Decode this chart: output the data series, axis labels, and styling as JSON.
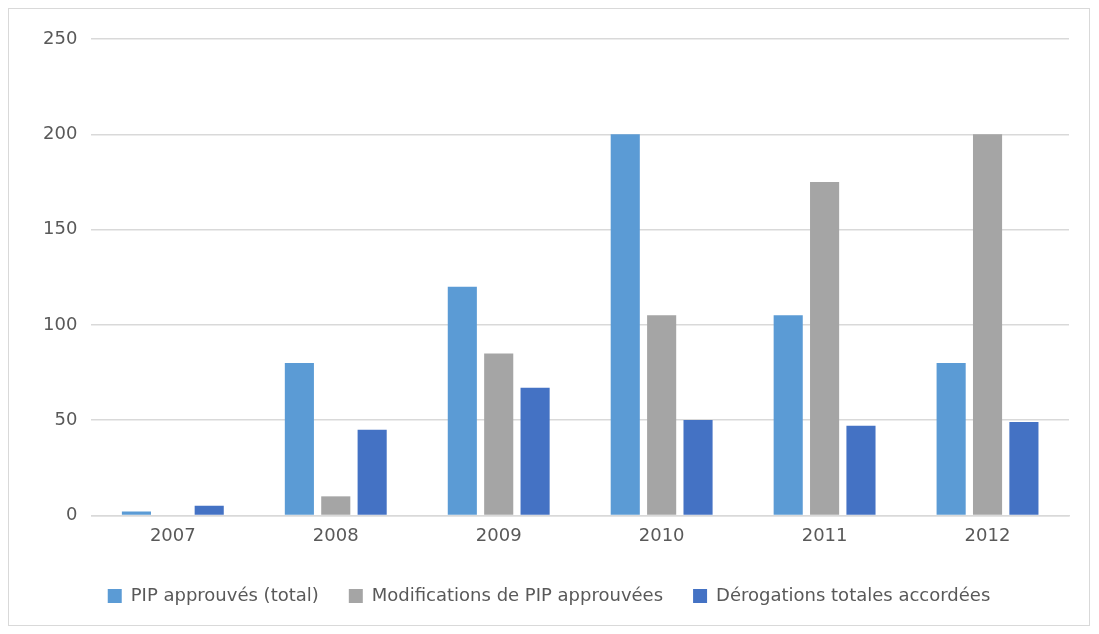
{
  "chart_data": {
    "type": "bar",
    "categories": [
      "2007",
      "2008",
      "2009",
      "2010",
      "2011",
      "2012"
    ],
    "series": [
      {
        "name": "PIP approuvés (total)",
        "color": "#5b9bd5",
        "values": [
          2,
          80,
          120,
          200,
          105,
          80
        ]
      },
      {
        "name": "Modifications de PIP approuvées",
        "color": "#a5a5a5",
        "values": [
          0,
          10,
          85,
          105,
          175,
          200
        ]
      },
      {
        "name": "Dérogations totales accordées",
        "color": "#4472c4",
        "values": [
          5,
          45,
          67,
          50,
          47,
          49
        ]
      }
    ],
    "ylim": [
      0,
      250
    ],
    "yticks": [
      0,
      50,
      100,
      150,
      200,
      250
    ],
    "grid": "y",
    "legend": "bottom"
  }
}
